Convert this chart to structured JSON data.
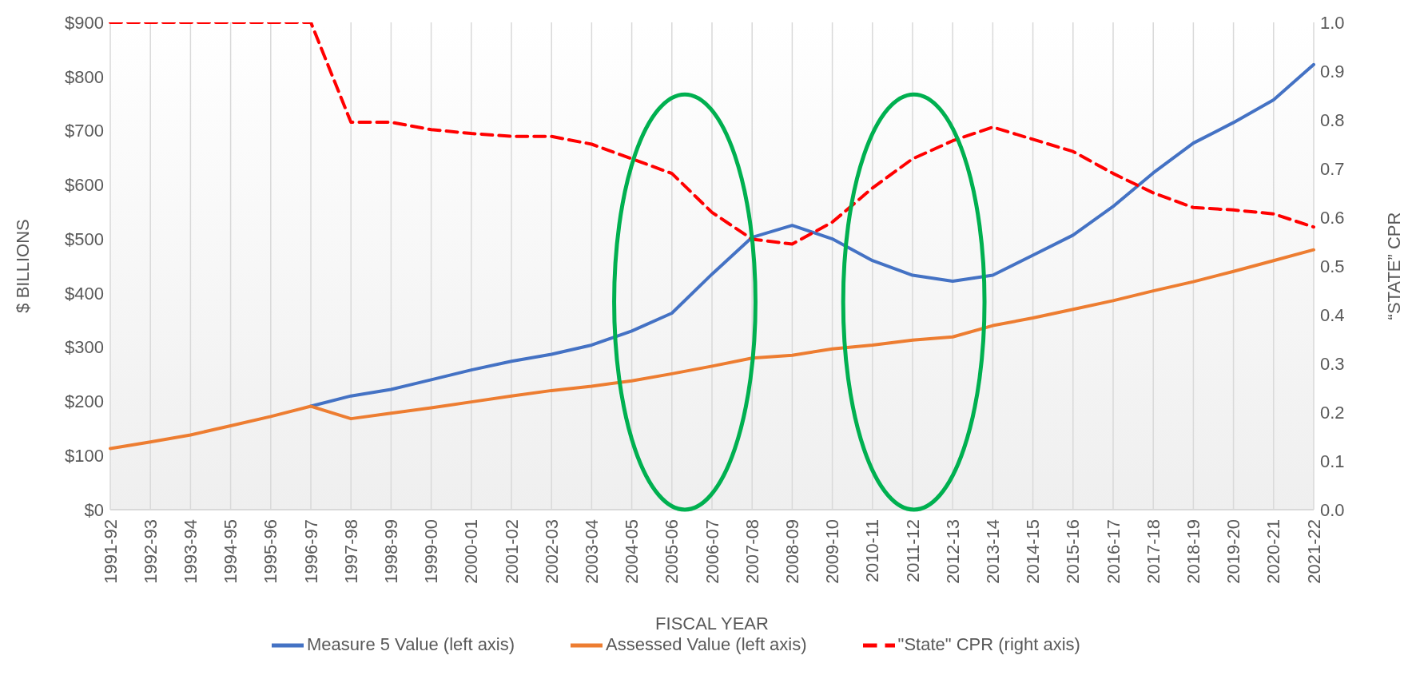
{
  "chart_data": {
    "type": "line",
    "xlabel": "FISCAL YEAR",
    "ylabel": "$ BILLIONS",
    "y2label": "“STATE” CPR",
    "categories": [
      "1991-92",
      "1992-93",
      "1993-94",
      "1994-95",
      "1995-96",
      "1996-97",
      "1997-98",
      "1998-99",
      "1999-00",
      "2000-01",
      "2001-02",
      "2002-03",
      "2003-04",
      "2004-05",
      "2005-06",
      "2006-07",
      "2007-08",
      "2008-09",
      "2009-10",
      "2010-11",
      "2011-12",
      "2012-13",
      "2013-14",
      "2014-15",
      "2015-16",
      "2016-17",
      "2017-18",
      "2018-19",
      "2019-20",
      "2020-21",
      "2021-22"
    ],
    "series": [
      {
        "name": "Measure 5 Value (left axis)",
        "color": "#4472c4",
        "values": [
          null,
          null,
          null,
          null,
          null,
          191,
          210,
          222,
          240,
          258,
          274,
          287,
          304,
          330,
          363,
          435,
          503,
          525,
          500,
          460,
          433,
          422,
          433,
          470,
          507,
          560,
          622,
          677,
          715,
          757,
          822
        ]
      },
      {
        "name": "Assessed Value (left axis)",
        "color": "#ed7d31",
        "values": [
          113,
          125,
          138,
          155,
          172,
          191,
          168,
          178,
          188,
          199,
          210,
          220,
          228,
          238,
          251,
          265,
          280,
          285,
          297,
          304,
          313,
          319,
          340,
          354,
          370,
          386,
          404,
          421,
          440,
          460,
          480
        ]
      },
      {
        "name": "\"State\" CPR (right axis)",
        "color": "#ff0000",
        "axis": "y2",
        "line_style": "dashed",
        "values": [
          1.0,
          1.0,
          1.0,
          1.0,
          1.0,
          1.0,
          0.795,
          0.795,
          0.78,
          0.772,
          0.766,
          0.766,
          0.75,
          0.72,
          0.69,
          0.61,
          0.555,
          0.545,
          0.59,
          0.66,
          0.72,
          0.757,
          0.785,
          0.76,
          0.735,
          0.69,
          0.65,
          0.62,
          0.615,
          0.607,
          0.58
        ]
      }
    ],
    "ylim": [
      0,
      900
    ],
    "yticks": [
      {
        "value": 0,
        "label": "$0"
      },
      {
        "value": 100,
        "label": "$100"
      },
      {
        "value": 200,
        "label": "$200"
      },
      {
        "value": 300,
        "label": "$300"
      },
      {
        "value": 400,
        "label": "$400"
      },
      {
        "value": 500,
        "label": "$500"
      },
      {
        "value": 600,
        "label": "$600"
      },
      {
        "value": 700,
        "label": "$700"
      },
      {
        "value": 800,
        "label": "$800"
      },
      {
        "value": 900,
        "label": "$900"
      }
    ],
    "y2lim": [
      0,
      1
    ],
    "y2ticks": [
      {
        "value": 0,
        "label": "0.0"
      },
      {
        "value": 0.1,
        "label": "0.1"
      },
      {
        "value": 0.2,
        "label": "0.2"
      },
      {
        "value": 0.3,
        "label": "0.3"
      },
      {
        "value": 0.4,
        "label": "0.4"
      },
      {
        "value": 0.5,
        "label": "0.5"
      },
      {
        "value": 0.6,
        "label": "0.6"
      },
      {
        "value": 0.7,
        "label": "0.7"
      },
      {
        "value": 0.8,
        "label": "0.8"
      },
      {
        "value": 0.9,
        "label": "0.9"
      },
      {
        "value": 1,
        "label": "1.0"
      }
    ],
    "grid": "x",
    "legend": "bottom",
    "marker": "none",
    "line_style": "solid"
  }
}
